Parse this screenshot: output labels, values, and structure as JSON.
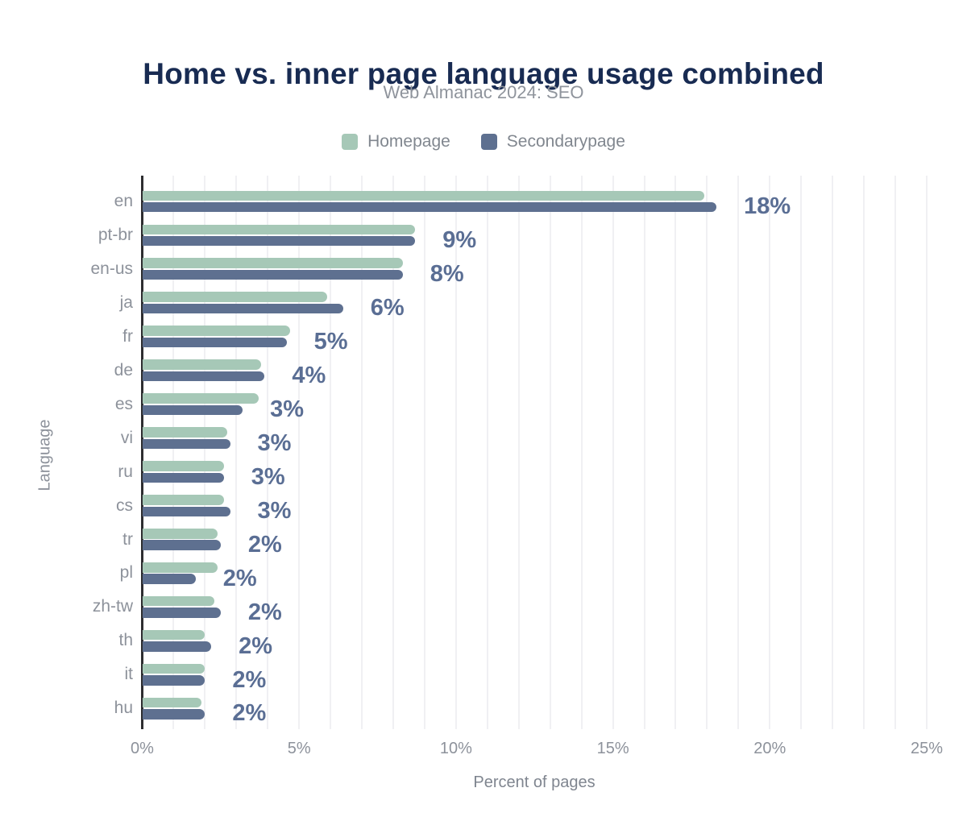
{
  "header": {
    "title": "Home vs. inner page language usage combined",
    "subtitle": "Web Almanac 2024: SEO"
  },
  "colors": {
    "title": "#182b52",
    "subtitle": "#8f949c",
    "homepage_bar": "#a6c8b7",
    "secondarypage_bar": "#5e7090",
    "data_label": "#5a6e94",
    "axis_text": "#8d929b",
    "axis_line": "#2d2d30",
    "gridline": "#f0f0f3",
    "background": "#ffffff"
  },
  "chart_data": {
    "type": "bar",
    "orientation": "horizontal",
    "title": "Home vs. inner page language usage combined",
    "subtitle": "Web Almanac 2024: SEO",
    "xlabel": "Percent of pages",
    "ylabel": "Language",
    "xlim": [
      0,
      25
    ],
    "x_ticks": [
      "0%",
      "5%",
      "10%",
      "15%",
      "20%",
      "25%"
    ],
    "x_tick_values": [
      0,
      5,
      10,
      15,
      20,
      25
    ],
    "grid": "vertical lines every 1%",
    "legend_position": "top-center",
    "categories": [
      "en",
      "pt-br",
      "en-us",
      "ja",
      "fr",
      "de",
      "es",
      "vi",
      "ru",
      "cs",
      "tr",
      "pl",
      "zh-tw",
      "th",
      "it",
      "hu"
    ],
    "series": [
      {
        "name": "Homepage",
        "color": "#a6c8b7",
        "values": [
          17.9,
          8.7,
          8.3,
          5.9,
          4.7,
          3.8,
          3.7,
          2.7,
          2.6,
          2.6,
          2.4,
          2.4,
          2.3,
          2.0,
          2.0,
          1.9
        ]
      },
      {
        "name": "Secondarypage",
        "color": "#5e7090",
        "values": [
          18.3,
          8.7,
          8.3,
          6.4,
          4.6,
          3.9,
          3.2,
          2.8,
          2.6,
          2.8,
          2.5,
          1.7,
          2.5,
          2.2,
          2.0,
          2.0
        ]
      }
    ],
    "data_labels": [
      "18%",
      "9%",
      "8%",
      "6%",
      "5%",
      "4%",
      "3%",
      "3%",
      "3%",
      "3%",
      "2%",
      "2%",
      "2%",
      "2%",
      "2%",
      "2%"
    ],
    "data_labels_series": "Secondarypage"
  }
}
